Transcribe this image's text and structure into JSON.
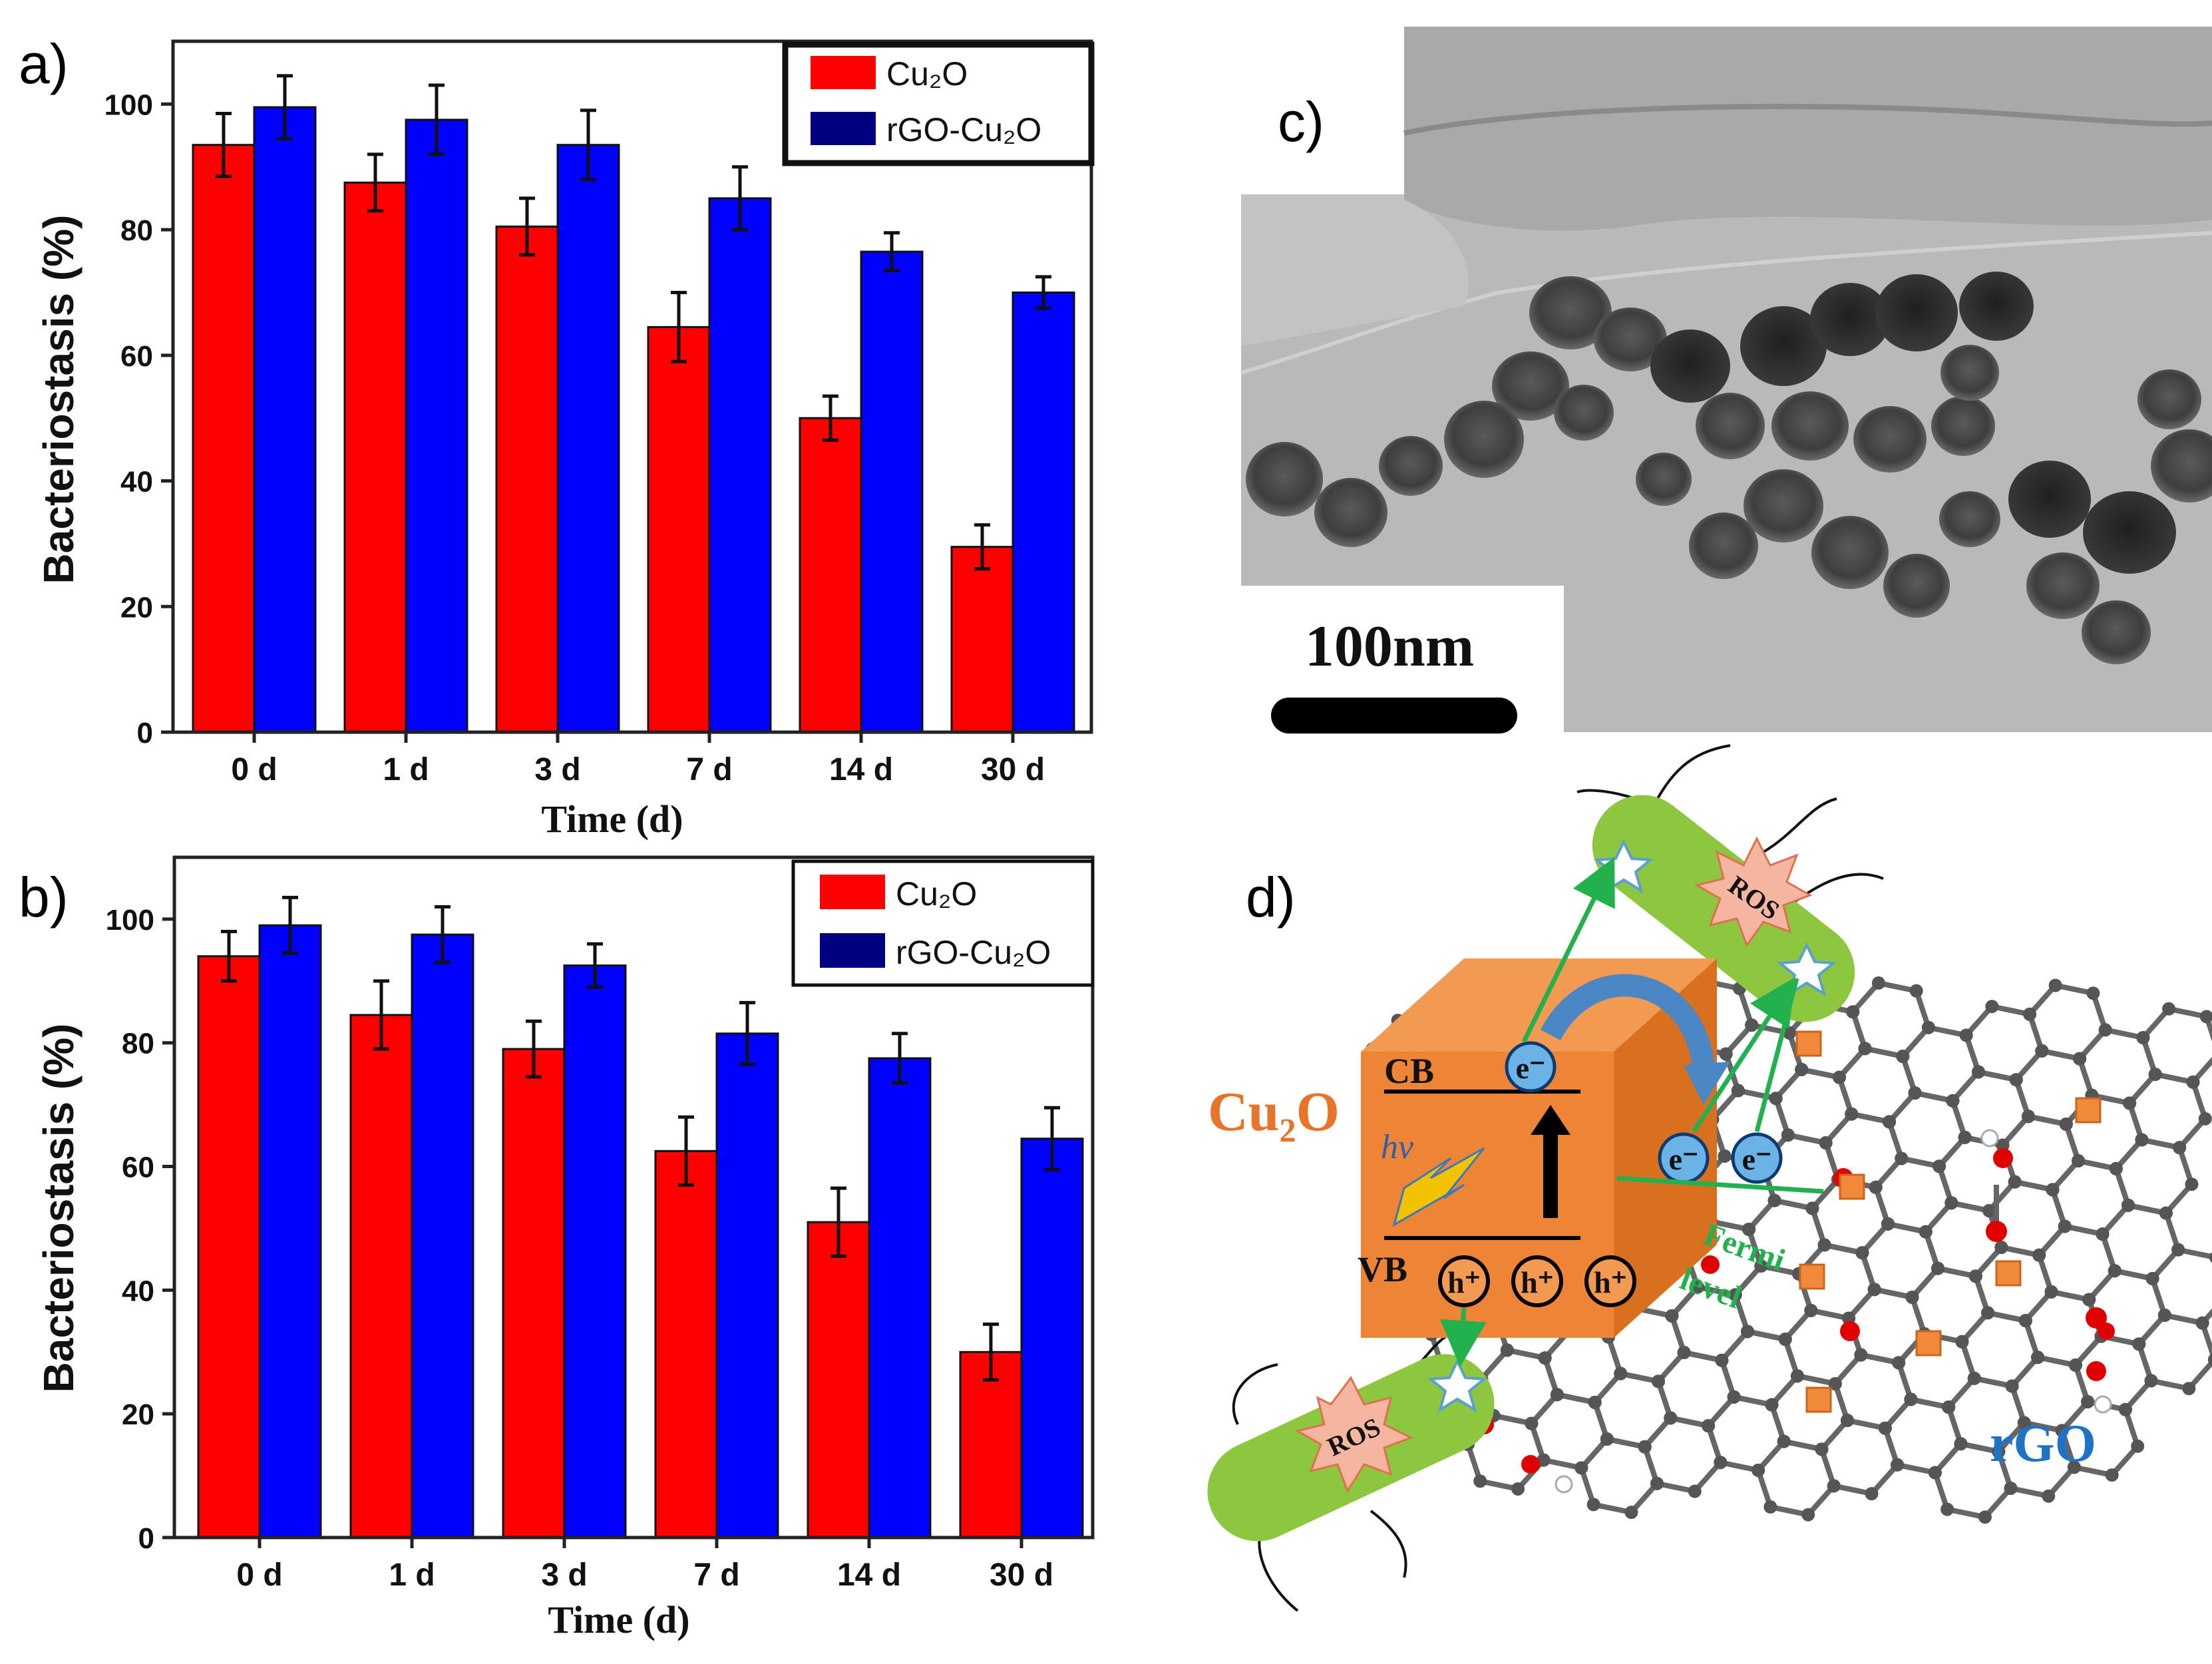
{
  "panels": {
    "a": "a)",
    "b": "b)",
    "c": "c)",
    "d": "d)"
  },
  "colors": {
    "cu2o": "#ff0000",
    "rgo_cu2o": "#0000ff",
    "cu2o_legend": "#ff0000",
    "rgo_legend": "#000080"
  },
  "chart_data": [
    {
      "type": "bar",
      "id": "a",
      "categories": [
        "0 d",
        "1 d",
        "3 d",
        "7 d",
        "14 d",
        "30 d"
      ],
      "series": [
        {
          "name": "Cu2O",
          "values": [
            93.5,
            87.5,
            80.5,
            64.5,
            50,
            29.5
          ],
          "errors": [
            5,
            4.5,
            4.5,
            5.5,
            3.5,
            3.5
          ]
        },
        {
          "name": "rGO-Cu2O",
          "values": [
            99.5,
            97.5,
            93.5,
            85,
            76.5,
            70
          ],
          "errors": [
            5,
            5.5,
            5.5,
            5,
            3,
            2.5
          ]
        }
      ],
      "xlabel": "Time (d)",
      "ylabel": "Bacteriostasis (%)",
      "ylim": [
        0,
        110
      ],
      "yticks": [
        "0",
        "20",
        "40",
        "60",
        "80",
        "100"
      ],
      "legend": {
        "position": "top-right",
        "items": [
          "Cu₂O",
          "rGO-Cu₂O"
        ]
      }
    },
    {
      "type": "bar",
      "id": "b",
      "categories": [
        "0 d",
        "1 d",
        "3 d",
        "7 d",
        "14 d",
        "30 d"
      ],
      "series": [
        {
          "name": "Cu2O",
          "values": [
            94,
            84.5,
            79,
            62.5,
            51,
            30
          ],
          "errors": [
            4,
            5.5,
            4.5,
            5.5,
            5.5,
            4.5
          ]
        },
        {
          "name": "rGO-Cu2O",
          "values": [
            99,
            97.5,
            92.5,
            81.5,
            77.5,
            64.5
          ],
          "errors": [
            4.5,
            4.5,
            3.5,
            5,
            4,
            5
          ]
        }
      ],
      "xlabel": "Time (d)",
      "ylabel": "Bacteriostasis (%)",
      "ylim": [
        0,
        110
      ],
      "yticks": [
        "0",
        "20",
        "40",
        "60",
        "80",
        "100"
      ],
      "legend": {
        "position": "top-right",
        "items": [
          "Cu₂O",
          "rGO-Cu₂O"
        ]
      }
    }
  ],
  "tem": {
    "scale_label": "100nm"
  },
  "schematic": {
    "cu2o_label": "Cu₂O",
    "cb": "CB",
    "vb": "VB",
    "hv": "hv",
    "electron": "e⁻",
    "hole": "h⁺",
    "ros": "ROS",
    "fermi_line1": "Fermi",
    "fermi_line2": "level",
    "rgo_label": "rGO"
  }
}
